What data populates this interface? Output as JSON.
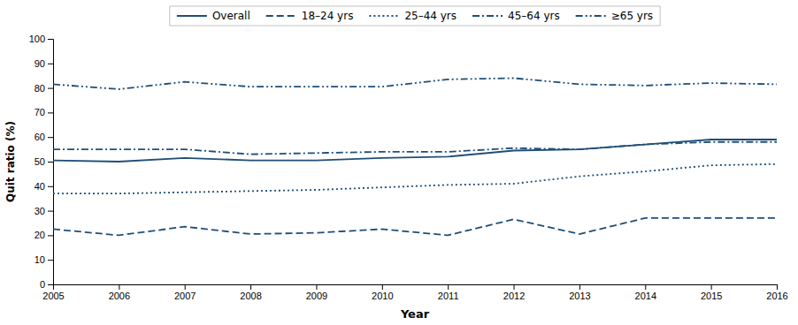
{
  "chart_data": {
    "type": "line",
    "xlabel": "Year",
    "ylabel": "Quit ratio (%)",
    "x": [
      2005,
      2006,
      2007,
      2008,
      2009,
      2010,
      2011,
      2012,
      2013,
      2014,
      2015,
      2016
    ],
    "xlim": [
      2005,
      2016
    ],
    "xticks": [
      2005,
      2006,
      2007,
      2008,
      2009,
      2010,
      2011,
      2012,
      2013,
      2014,
      2015,
      2016
    ],
    "ylim": [
      0,
      100
    ],
    "yticks": [
      0,
      10,
      20,
      30,
      40,
      50,
      60,
      70,
      80,
      90,
      100
    ],
    "legend": "top",
    "grid": false,
    "series": [
      {
        "name": "Overall",
        "color": "#1f4e79",
        "line_style": "solid",
        "values": [
          50.5,
          50.0,
          51.5,
          50.5,
          50.5,
          51.5,
          52.0,
          54.5,
          55.0,
          57.0,
          59.0,
          59.0
        ]
      },
      {
        "name": "18–24 yrs",
        "color": "#1f4e79",
        "line_style": "dashed",
        "values": [
          22.5,
          20.0,
          23.5,
          20.5,
          21.0,
          22.5,
          20.0,
          26.5,
          20.5,
          27.0,
          27.0,
          27.0
        ]
      },
      {
        "name": "25–44 yrs",
        "color": "#1f4e79",
        "line_style": "dotted",
        "values": [
          37.0,
          37.0,
          37.5,
          38.0,
          38.5,
          39.5,
          40.5,
          41.0,
          44.0,
          46.0,
          48.5,
          49.0
        ]
      },
      {
        "name": "45–64 yrs",
        "color": "#1f4e79",
        "line_style": "dashdot",
        "values": [
          55.0,
          55.0,
          55.0,
          53.0,
          53.5,
          54.0,
          54.0,
          55.5,
          55.0,
          57.0,
          58.0,
          58.0
        ]
      },
      {
        "name": "≥65 yrs",
        "color": "#1f4e79",
        "line_style": "dashdotdot",
        "values": [
          81.5,
          79.5,
          82.5,
          80.5,
          80.5,
          80.5,
          83.5,
          84.0,
          81.5,
          81.0,
          82.0,
          81.5
        ]
      }
    ]
  }
}
